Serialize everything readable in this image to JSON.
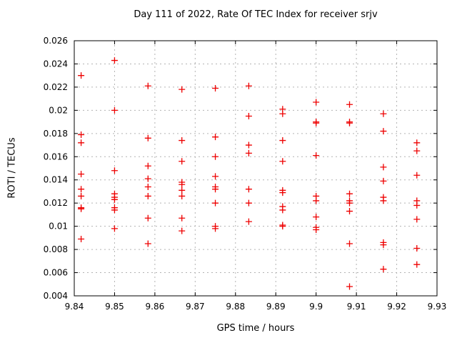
{
  "page": {
    "background": "#ffffff",
    "text_color": "#000000"
  },
  "chart_data": {
    "type": "scatter",
    "title": "Day 111 of 2022, Rate Of TEC Index for receiver srjv",
    "xlabel": "GPS time / hours",
    "ylabel": "ROTI / TECUs",
    "xlim": [
      9.84,
      9.93
    ],
    "ylim": [
      0.004,
      0.026
    ],
    "grid": true,
    "legend": "none",
    "grid_color": "#b3b3b3",
    "border_color": "#000000",
    "marker": {
      "shape": "plus",
      "color": "#ee0000",
      "size": 9
    },
    "x_ticks": [
      {
        "v": 9.84,
        "label": "9.84"
      },
      {
        "v": 9.85,
        "label": "9.85"
      },
      {
        "v": 9.86,
        "label": "9.86"
      },
      {
        "v": 9.87,
        "label": "9.87"
      },
      {
        "v": 9.88,
        "label": "9.88"
      },
      {
        "v": 9.89,
        "label": "9.89"
      },
      {
        "v": 9.9,
        "label": "9.9"
      },
      {
        "v": 9.91,
        "label": "9.91"
      },
      {
        "v": 9.92,
        "label": "9.92"
      },
      {
        "v": 9.93,
        "label": "9.93"
      }
    ],
    "y_ticks": [
      {
        "v": 0.004,
        "label": "0.004"
      },
      {
        "v": 0.006,
        "label": "0.006"
      },
      {
        "v": 0.008,
        "label": "0.008"
      },
      {
        "v": 0.01,
        "label": "0.01"
      },
      {
        "v": 0.012,
        "label": "0.012"
      },
      {
        "v": 0.014,
        "label": "0.014"
      },
      {
        "v": 0.016,
        "label": "0.016"
      },
      {
        "v": 0.018,
        "label": "0.018"
      },
      {
        "v": 0.02,
        "label": "0.02"
      },
      {
        "v": 0.022,
        "label": "0.022"
      },
      {
        "v": 0.024,
        "label": "0.024"
      },
      {
        "v": 0.026,
        "label": "0.026"
      }
    ],
    "series": [
      {
        "name": "ROTI",
        "points": [
          [
            9.8417,
            0.023
          ],
          [
            9.8417,
            0.0179
          ],
          [
            9.8417,
            0.0172
          ],
          [
            9.8417,
            0.0145
          ],
          [
            9.8417,
            0.0132
          ],
          [
            9.8417,
            0.0126
          ],
          [
            9.8417,
            0.0116
          ],
          [
            9.8417,
            0.0115
          ],
          [
            9.8417,
            0.0089
          ],
          [
            9.85,
            0.0243
          ],
          [
            9.85,
            0.02
          ],
          [
            9.85,
            0.0148
          ],
          [
            9.85,
            0.0128
          ],
          [
            9.85,
            0.0125
          ],
          [
            9.85,
            0.0123
          ],
          [
            9.85,
            0.0116
          ],
          [
            9.85,
            0.0114
          ],
          [
            9.85,
            0.0098
          ],
          [
            9.8583,
            0.0221
          ],
          [
            9.8583,
            0.0176
          ],
          [
            9.8583,
            0.0152
          ],
          [
            9.8583,
            0.0141
          ],
          [
            9.8583,
            0.0134
          ],
          [
            9.8583,
            0.0126
          ],
          [
            9.8583,
            0.0107
          ],
          [
            9.8583,
            0.0085
          ],
          [
            9.8667,
            0.0218
          ],
          [
            9.8667,
            0.0174
          ],
          [
            9.8667,
            0.0156
          ],
          [
            9.8667,
            0.0138
          ],
          [
            9.8667,
            0.0136
          ],
          [
            9.8667,
            0.0131
          ],
          [
            9.8667,
            0.0126
          ],
          [
            9.8667,
            0.0107
          ],
          [
            9.8667,
            0.0096
          ],
          [
            9.875,
            0.0219
          ],
          [
            9.875,
            0.0177
          ],
          [
            9.875,
            0.016
          ],
          [
            9.875,
            0.0143
          ],
          [
            9.875,
            0.0134
          ],
          [
            9.875,
            0.0132
          ],
          [
            9.875,
            0.012
          ],
          [
            9.875,
            0.01
          ],
          [
            9.875,
            0.0098
          ],
          [
            9.8833,
            0.0221
          ],
          [
            9.8833,
            0.0195
          ],
          [
            9.8833,
            0.017
          ],
          [
            9.8833,
            0.0163
          ],
          [
            9.8833,
            0.0132
          ],
          [
            9.8833,
            0.012
          ],
          [
            9.8833,
            0.0104
          ],
          [
            9.8917,
            0.0201
          ],
          [
            9.8917,
            0.0197
          ],
          [
            9.8917,
            0.0174
          ],
          [
            9.8917,
            0.0156
          ],
          [
            9.8917,
            0.0131
          ],
          [
            9.8917,
            0.0129
          ],
          [
            9.8917,
            0.0117
          ],
          [
            9.8917,
            0.0114
          ],
          [
            9.8917,
            0.0101
          ],
          [
            9.8917,
            0.01
          ],
          [
            9.9,
            0.0207
          ],
          [
            9.9,
            0.019
          ],
          [
            9.9,
            0.0189
          ],
          [
            9.9,
            0.0161
          ],
          [
            9.9,
            0.0126
          ],
          [
            9.9,
            0.0122
          ],
          [
            9.9,
            0.0108
          ],
          [
            9.9,
            0.0099
          ],
          [
            9.9,
            0.0097
          ],
          [
            9.9083,
            0.0205
          ],
          [
            9.9083,
            0.019
          ],
          [
            9.9083,
            0.0189
          ],
          [
            9.9083,
            0.0128
          ],
          [
            9.9083,
            0.0122
          ],
          [
            9.9083,
            0.012
          ],
          [
            9.9083,
            0.0113
          ],
          [
            9.9083,
            0.0085
          ],
          [
            9.9083,
            0.0048
          ],
          [
            9.9167,
            0.0197
          ],
          [
            9.9167,
            0.0182
          ],
          [
            9.9167,
            0.0151
          ],
          [
            9.9167,
            0.0139
          ],
          [
            9.9167,
            0.0125
          ],
          [
            9.9167,
            0.0122
          ],
          [
            9.9167,
            0.0086
          ],
          [
            9.9167,
            0.0084
          ],
          [
            9.9167,
            0.0063
          ],
          [
            9.925,
            0.0172
          ],
          [
            9.925,
            0.0165
          ],
          [
            9.925,
            0.0144
          ],
          [
            9.925,
            0.0122
          ],
          [
            9.925,
            0.0118
          ],
          [
            9.925,
            0.0106
          ],
          [
            9.925,
            0.0081
          ],
          [
            9.925,
            0.0067
          ]
        ]
      }
    ]
  }
}
